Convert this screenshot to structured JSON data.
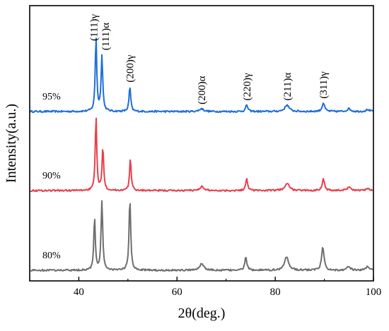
{
  "chart_data": {
    "type": "line",
    "xlabel": "2θ(deg.)",
    "ylabel": "Intensity(a.u.)",
    "xlim": [
      30,
      100
    ],
    "x_ticks": [
      "40",
      "60",
      "80",
      "100"
    ],
    "y_ticks_visible": false,
    "grid": false,
    "legend": "none",
    "series": [
      {
        "name": "95%",
        "color": "#1f6fd6",
        "baseline": 0.0,
        "peaks": [
          {
            "x": 43.5,
            "height": 0.79,
            "width": 0.18
          },
          {
            "x": 44.7,
            "height": 0.58,
            "width": 0.2
          },
          {
            "x": 50.4,
            "height": 0.26,
            "width": 0.2
          },
          {
            "x": 65.0,
            "height": 0.03,
            "width": 0.5
          },
          {
            "x": 74.2,
            "height": 0.07,
            "width": 0.25
          },
          {
            "x": 82.4,
            "height": 0.07,
            "width": 0.5
          },
          {
            "x": 89.8,
            "height": 0.09,
            "width": 0.3
          },
          {
            "x": 95.0,
            "height": 0.03,
            "width": 0.4
          },
          {
            "x": 98.8,
            "height": 0.02,
            "width": 0.4
          }
        ]
      },
      {
        "name": "90%",
        "color": "#e8404a",
        "baseline": 0.0,
        "peaks": [
          {
            "x": 43.5,
            "height": 0.79,
            "width": 0.18
          },
          {
            "x": 44.9,
            "height": 0.45,
            "width": 0.2
          },
          {
            "x": 50.5,
            "height": 0.33,
            "width": 0.2
          },
          {
            "x": 65.0,
            "height": 0.04,
            "width": 0.5
          },
          {
            "x": 74.2,
            "height": 0.12,
            "width": 0.25
          },
          {
            "x": 82.4,
            "height": 0.08,
            "width": 0.5
          },
          {
            "x": 89.8,
            "height": 0.12,
            "width": 0.3
          },
          {
            "x": 95.0,
            "height": 0.04,
            "width": 0.4
          },
          {
            "x": 98.8,
            "height": 0.02,
            "width": 0.4
          }
        ]
      },
      {
        "name": "80%",
        "color": "#6e6e6e",
        "baseline": 0.0,
        "peaks": [
          {
            "x": 43.2,
            "height": 0.56,
            "width": 0.18
          },
          {
            "x": 44.7,
            "height": 0.72,
            "width": 0.2
          },
          {
            "x": 50.4,
            "height": 0.75,
            "width": 0.2
          },
          {
            "x": 65.0,
            "height": 0.07,
            "width": 0.5
          },
          {
            "x": 74.0,
            "height": 0.14,
            "width": 0.25
          },
          {
            "x": 82.3,
            "height": 0.14,
            "width": 0.5
          },
          {
            "x": 89.7,
            "height": 0.24,
            "width": 0.3
          },
          {
            "x": 95.0,
            "height": 0.04,
            "width": 0.4
          },
          {
            "x": 98.8,
            "height": 0.04,
            "width": 0.4
          }
        ]
      }
    ],
    "peak_labels": [
      {
        "text": "(111)γ",
        "x": 43.5
      },
      {
        "text": "(111)α",
        "x": 44.7
      },
      {
        "text": "(200)γ",
        "x": 50.4
      },
      {
        "text": "(200)α",
        "x": 65.0
      },
      {
        "text": "(220)γ",
        "x": 74.2
      },
      {
        "text": "(211)α",
        "x": 82.4
      },
      {
        "text": "(311)γ",
        "x": 89.8
      }
    ]
  }
}
